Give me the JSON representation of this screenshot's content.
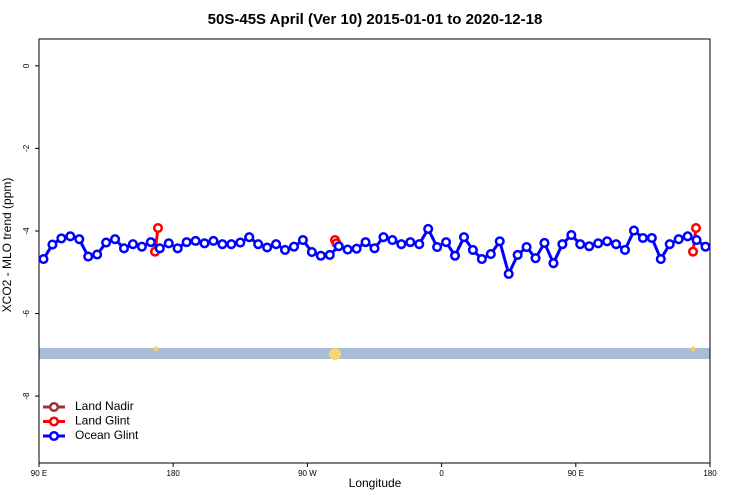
{
  "chart_data": {
    "type": "line",
    "title": "50S-45S April (Ver 10)   2015-01-01 to 2020-12-18",
    "x_label": "Longitude",
    "y_label": "XCO2 - MLO trend (ppm)",
    "xlim": [
      90,
      540
    ],
    "xticks": [
      {
        "value": 90,
        "label": "90 E"
      },
      180,
      {
        "value": 270,
        "label": "90 W"
      },
      {
        "value": 360,
        "label": "0"
      },
      {
        "value": 450,
        "label": "90 E"
      },
      {
        "value": 540,
        "label": "180"
      }
    ],
    "ylim": [
      -9.62,
      0.65
    ],
    "yticks": [
      0,
      -2,
      -4,
      -6,
      -8
    ],
    "legend": "bottom-left",
    "series": [
      {
        "name": "Land Nadir",
        "color": "#a03030",
        "x": [],
        "values": []
      },
      {
        "name": "Land Glint",
        "color": "#ff0000",
        "x": [
          167.8,
          169.8,
          288.5,
          289.5,
          528.6,
          530.6
        ],
        "values": [
          -4.5,
          -3.93,
          -4.22,
          -4.3,
          -4.5,
          -3.93
        ]
      },
      {
        "name": "Ocean Glint",
        "color": "#0000ff",
        "x": [
          93,
          99,
          105,
          111,
          117,
          123,
          129,
          135,
          141,
          147,
          153,
          159,
          165,
          171,
          177,
          183,
          189,
          195,
          201,
          207,
          213,
          219,
          225,
          231,
          237,
          243,
          249,
          255,
          261,
          267,
          273,
          279,
          285,
          291,
          297,
          303,
          309,
          315,
          321,
          327,
          333,
          339,
          345,
          351,
          357,
          363,
          369,
          375,
          381,
          387,
          393,
          399,
          405,
          411,
          417,
          423,
          429,
          435,
          441,
          447,
          453,
          459,
          465,
          471,
          477,
          483,
          489,
          495,
          501,
          507,
          513,
          519,
          525,
          531,
          537
        ],
        "values": [
          -4.68,
          -4.33,
          -4.18,
          -4.13,
          -4.2,
          -4.62,
          -4.57,
          -4.28,
          -4.2,
          -4.42,
          -4.32,
          -4.38,
          -4.27,
          -4.42,
          -4.3,
          -4.42,
          -4.27,
          -4.24,
          -4.3,
          -4.24,
          -4.32,
          -4.32,
          -4.28,
          -4.15,
          -4.32,
          -4.4,
          -4.32,
          -4.46,
          -4.38,
          -4.22,
          -4.51,
          -4.6,
          -4.58,
          -4.37,
          -4.45,
          -4.43,
          -4.27,
          -4.42,
          -4.15,
          -4.22,
          -4.32,
          -4.27,
          -4.32,
          -3.95,
          -4.39,
          -4.27,
          -4.6,
          -4.15,
          -4.46,
          -4.68,
          -4.56,
          -4.25,
          -5.04,
          -4.58,
          -4.39,
          -4.66,
          -4.29,
          -4.78,
          -4.32,
          -4.1,
          -4.32,
          -4.37,
          -4.3,
          -4.25,
          -4.32,
          -4.46,
          -3.99,
          -4.17,
          -4.17,
          -4.68,
          -4.32,
          -4.2,
          -4.13,
          -4.22,
          -4.38
        ]
      }
    ]
  }
}
